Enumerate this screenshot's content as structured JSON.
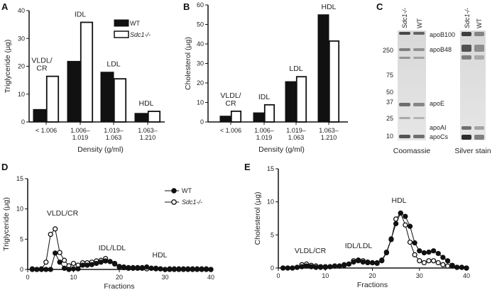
{
  "panel_labels": {
    "A": "A",
    "B": "B",
    "C": "C",
    "D": "D",
    "E": "E"
  },
  "chart_data": [
    {
      "panel": "A",
      "type": "bar",
      "categories": [
        "< 1.006",
        "1.006–\n1.019",
        "1.019–\n1.063",
        "1.063–\n1.210"
      ],
      "category_annotations": [
        "VLDL/\nCR",
        "IDL",
        "LDL",
        "HDL"
      ],
      "series": [
        {
          "name": "WT",
          "values": [
            4.5,
            21.8,
            17.9,
            3.1
          ],
          "color": "#111111"
        },
        {
          "name": "Sdc1-/-",
          "values": [
            16.4,
            35.8,
            15.5,
            3.8
          ],
          "color": "#ffffff"
        }
      ],
      "xlabel": "Density (g/ml)",
      "ylabel": "Triglyceride (µg)",
      "ylim": [
        0,
        40
      ],
      "yticks": [
        0,
        10,
        20,
        30,
        40
      ],
      "legend": "top-right"
    },
    {
      "panel": "B",
      "type": "bar",
      "categories": [
        "< 1.006",
        "1.006–\n1.019",
        "1.019–\n1.063",
        "1.063–\n1.210"
      ],
      "category_annotations": [
        "VLDL/\nCR",
        "IDL",
        "LDL",
        "HDL"
      ],
      "series": [
        {
          "name": "WT",
          "values": [
            3.0,
            4.7,
            20.7,
            55.0
          ],
          "color": "#111111"
        },
        {
          "name": "Sdc1-/-",
          "values": [
            5.5,
            8.8,
            23.2,
            41.5
          ],
          "color": "#ffffff"
        }
      ],
      "xlabel": "Density (g/ml)",
      "ylabel": "Cholesterol (µg)",
      "ylim": [
        0,
        60
      ],
      "yticks": [
        0,
        10,
        20,
        30,
        40,
        50,
        60
      ]
    },
    {
      "panel": "D",
      "type": "line",
      "x": [
        1,
        2,
        3,
        4,
        5,
        6,
        7,
        8,
        9,
        10,
        11,
        12,
        13,
        14,
        15,
        16,
        17,
        18,
        19,
        20,
        21,
        22,
        23,
        24,
        25,
        26,
        27,
        28,
        29,
        30,
        31,
        32,
        33,
        34,
        35,
        36,
        37,
        38,
        39,
        40
      ],
      "series": [
        {
          "name": "WT",
          "marker": "filled",
          "values": [
            0.1,
            0,
            0.1,
            0,
            0,
            2.7,
            1.2,
            0.2,
            0,
            0.1,
            0.1,
            0.7,
            0.7,
            0.8,
            1.0,
            1.2,
            1.4,
            1.3,
            1.0,
            0.5,
            0.4,
            0.3,
            0.3,
            0.3,
            0.3,
            0.4,
            0.2,
            0.2,
            0.1,
            0,
            0.1,
            0.1,
            0.1,
            0.1,
            0.1,
            0.1,
            0.1,
            0.1,
            0.1,
            0
          ]
        },
        {
          "name": "Sdc1-/-",
          "marker": "open",
          "values": [
            0,
            0,
            0,
            1.2,
            5.8,
            6.7,
            2.8,
            1.5,
            0.6,
            1.0,
            0.7,
            1.1,
            1.1,
            1.2,
            1.4,
            1.5,
            1.8,
            1.3,
            0.9,
            0.4,
            0.3,
            0.2,
            0.2,
            0.2,
            0.2,
            0.1,
            0.2,
            0.1,
            0.1,
            0,
            0,
            0,
            0,
            0,
            0,
            0,
            0,
            0,
            0,
            0
          ]
        }
      ],
      "annotations": [
        "VLDL/CR",
        "IDL/LDL",
        "HDL"
      ],
      "xlabel": "Fractions",
      "ylabel": "Triglyceride (µg)",
      "xlim": [
        0,
        40
      ],
      "ylim": [
        0,
        15
      ],
      "xticks": [
        0,
        10,
        20,
        30,
        40
      ],
      "yticks": [
        0,
        5,
        10,
        15
      ],
      "legend": "top-right"
    },
    {
      "panel": "E",
      "type": "line",
      "x": [
        1,
        2,
        3,
        4,
        5,
        6,
        7,
        8,
        9,
        10,
        11,
        12,
        13,
        14,
        15,
        16,
        17,
        18,
        19,
        20,
        21,
        22,
        23,
        24,
        25,
        26,
        27,
        28,
        29,
        30,
        31,
        32,
        33,
        34,
        35,
        36,
        37,
        38,
        39,
        40
      ],
      "series": [
        {
          "name": "WT",
          "marker": "filled",
          "values": [
            0,
            0,
            0,
            0.1,
            0.2,
            0.3,
            0.2,
            0.1,
            0.1,
            0.1,
            0.2,
            0.3,
            0.3,
            0.5,
            0.6,
            0.9,
            1.2,
            0.9,
            0.8,
            0.8,
            0.8,
            1.2,
            2.4,
            4.4,
            6.7,
            8.3,
            7.8,
            6.3,
            3.8,
            2.6,
            2.3,
            2.4,
            2.6,
            2.2,
            1.6,
            1.1,
            0.4,
            0.1,
            0.1,
            0
          ]
        },
        {
          "name": "Sdc1-/-",
          "marker": "open",
          "values": [
            0,
            0,
            0,
            0.1,
            0.5,
            0.6,
            0.4,
            0.3,
            0.2,
            0.2,
            0.2,
            0.3,
            0.3,
            0.4,
            0.6,
            1.1,
            1.1,
            1.1,
            0.9,
            0.8,
            0.7,
            1.1,
            2.3,
            4.3,
            7.4,
            8.3,
            6.5,
            3.9,
            2.0,
            1.1,
            0.8,
            1.1,
            1.1,
            0.8,
            0.5,
            0.3,
            0.3,
            0.1,
            0.1,
            0
          ]
        }
      ],
      "annotations": [
        "VLDL/CR",
        "IDL/LDL",
        "HDL"
      ],
      "xlabel": "Fractions",
      "ylabel": "Cholesterol (µg)",
      "xlim": [
        0,
        40
      ],
      "ylim": [
        0,
        15
      ],
      "xticks": [
        0,
        10,
        20,
        30,
        40
      ],
      "yticks": [
        0,
        5,
        10,
        15
      ]
    }
  ],
  "gel": {
    "lane_labels": [
      "Sdc1-/-",
      "WT"
    ],
    "markers": [
      "250",
      "75",
      "50",
      "37",
      "25",
      "10"
    ],
    "bands": [
      "apoB100",
      "apoB48",
      "apoE",
      "apoAI",
      "apoCs"
    ],
    "stains": [
      "Coomassie",
      "Silver stain"
    ]
  }
}
